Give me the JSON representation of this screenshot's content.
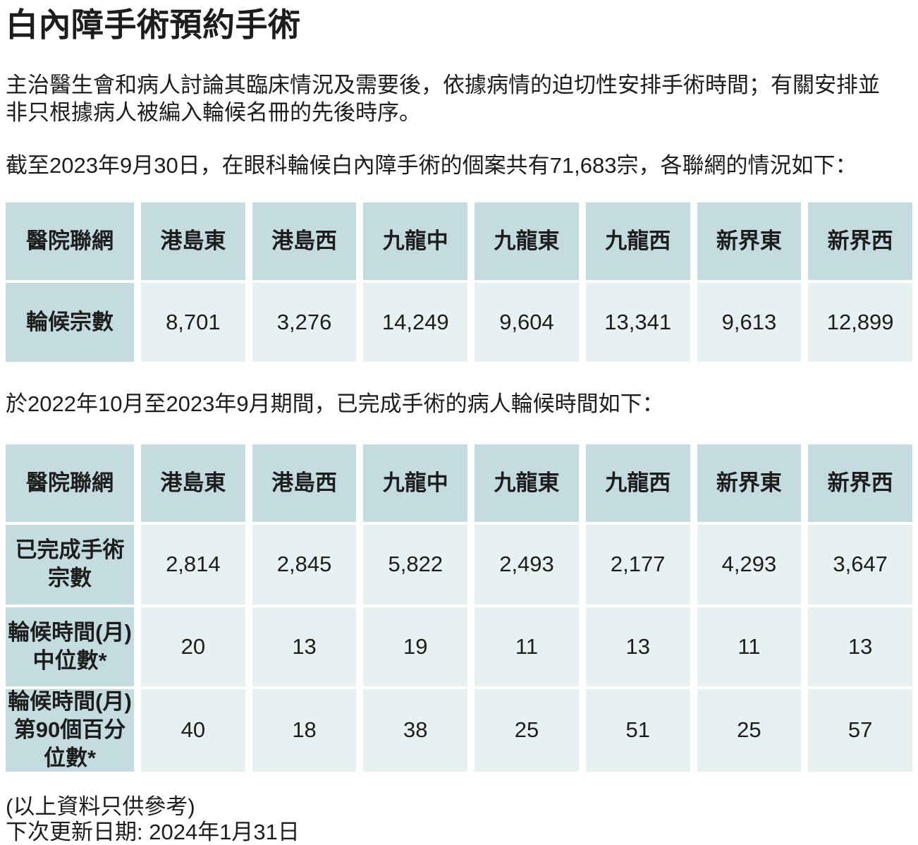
{
  "page": {
    "title": "白內障手術預約手術",
    "intro": "主治醫生會和病人討論其臨床情況及需要後，依據病情的迫切性安排手術時間；有關安排並\n非只根據病人被編入輪候名冊的先後時序。",
    "waiting_summary": "截至2023年9月30日，在眼科輪候白內障手術的個案共有71,683宗，各聯網的情況如下：",
    "completed_summary": "於2022年10月至2023年9月期間，已完成手術的病人輪候時間如下：",
    "footer_disclaimer": "(以上資料只供參考)",
    "next_update": "下次更新日期: 2024年1月31日"
  },
  "colors": {
    "header_cell_bg": "#c4dce0",
    "data_cell_bg": "#e8f1f2",
    "text": "#1d1d1d",
    "page_bg": "#ffffff"
  },
  "table1": {
    "header": [
      "醫院聯網",
      "港島東",
      "港島西",
      "九龍中",
      "九龍東",
      "九龍西",
      "新界東",
      "新界西"
    ],
    "rows": [
      {
        "label": "輪候宗數",
        "values": [
          "8,701",
          "3,276",
          "14,249",
          "9,604",
          "13,341",
          "9,613",
          "12,899"
        ]
      }
    ]
  },
  "table2": {
    "header": [
      "醫院聯網",
      "港島東",
      "港島西",
      "九龍中",
      "九龍東",
      "九龍西",
      "新界東",
      "新界西"
    ],
    "rows": [
      {
        "label": "已完成手術\n宗數",
        "values": [
          "2,814",
          "2,845",
          "5,822",
          "2,493",
          "2,177",
          "4,293",
          "3,647"
        ]
      },
      {
        "label": "輪候時間(月)\n中位數*",
        "values": [
          "20",
          "13",
          "19",
          "11",
          "13",
          "11",
          "13"
        ]
      },
      {
        "label": "輪候時間(月)\n第90個百分\n位數*",
        "values": [
          "40",
          "18",
          "38",
          "25",
          "51",
          "25",
          "57"
        ]
      }
    ]
  }
}
